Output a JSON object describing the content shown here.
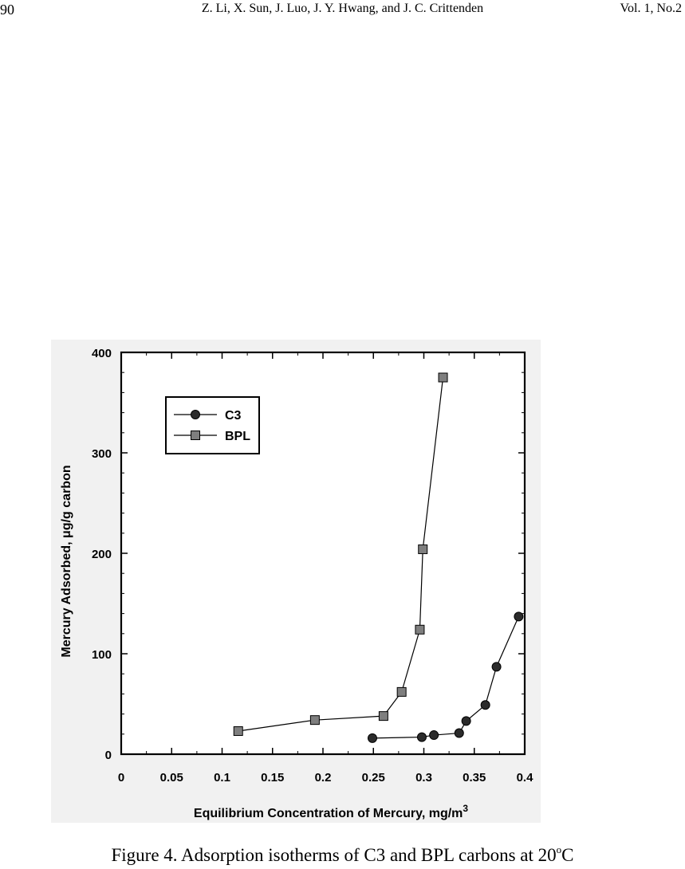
{
  "header": {
    "page_number": "90",
    "authors": "Z. Li, X. Sun, J. Luo,  J. Y. Hwang, and J. C. Crittenden",
    "volume": "Vol. 1, No.2"
  },
  "caption": {
    "text": "Figure 4. Adsorption isotherms of C3 and BPL carbons at 20",
    "degree_mark": "o",
    "unit": "C"
  },
  "chart_data": {
    "type": "scatter",
    "xlabel": "Equilibrium Concentration of Mercury, mg/m",
    "xlabel_superscript": "3",
    "ylabel": "Mercury Adsorbed, μg/g carbon",
    "xlim": [
      0,
      0.4
    ],
    "ylim": [
      0,
      400
    ],
    "x_ticks": [
      "0",
      "0.05",
      "0.1",
      "0.15",
      "0.2",
      "0.25",
      "0.3",
      "0.35",
      "0.4"
    ],
    "y_ticks": [
      "0",
      "100",
      "200",
      "300",
      "400"
    ],
    "grid": false,
    "legend_position": "top-left",
    "series": [
      {
        "name": "C3",
        "marker": "circle",
        "color": "#2b2b2b",
        "x": [
          0.249,
          0.298,
          0.31,
          0.335,
          0.342,
          0.361,
          0.372,
          0.394
        ],
        "y": [
          16,
          17,
          19,
          21,
          33,
          49,
          87,
          137
        ]
      },
      {
        "name": "BPL",
        "marker": "square",
        "color": "#7f7f7f",
        "x": [
          0.116,
          0.192,
          0.26,
          0.278,
          0.296,
          0.299,
          0.319
        ],
        "y": [
          23,
          34,
          38,
          62,
          124,
          204,
          375
        ]
      }
    ]
  }
}
